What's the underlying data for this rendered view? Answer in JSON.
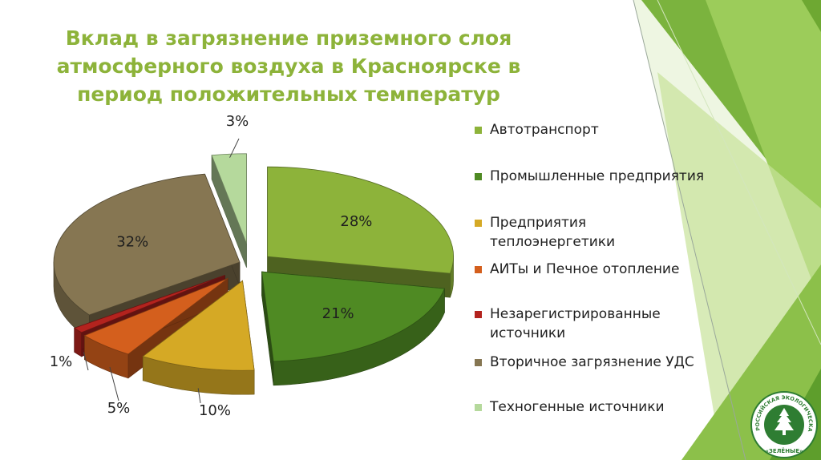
{
  "slide": {
    "title_lines": [
      "Вклад в загрязнение приземного слоя",
      "атмосферного воздуха в Красноярске в",
      "период положительных температур"
    ],
    "title_color": "#8db33a"
  },
  "chart_data": {
    "type": "pie",
    "style": "3d-exploded",
    "legend_position": "right",
    "categories": [
      "Автотранспорт",
      "Промышленные предприятия",
      "Предприятия теплоэнергетики",
      "АИТы и Печное отопление",
      "Незарегистрированные источники",
      "Вторичное загрязнение УДС",
      "Техногенные источники"
    ],
    "values": [
      28,
      21,
      10,
      5,
      1,
      32,
      3
    ],
    "value_labels": [
      "28%",
      "21%",
      "10%",
      "5%",
      "1%",
      "32%",
      "3%"
    ],
    "colors": [
      "#8db33a",
      "#4f8a23",
      "#d5a925",
      "#d45f1d",
      "#b3231e",
      "#867652",
      "#b5d99c"
    ]
  },
  "legend": {
    "items": [
      {
        "label": "Автотранспорт",
        "color": "#8db33a"
      },
      {
        "label": "Промышленные предприятия",
        "color": "#4f8a23"
      },
      {
        "label": "Предприятия теплоэнергетики",
        "color": "#d5a925"
      },
      {
        "label": "АИТы и Печное отопление",
        "color": "#d45f1d"
      },
      {
        "label": "Незарегистрированные источники",
        "color": "#b3231e"
      },
      {
        "label": "Вторичное загрязнение УДС",
        "color": "#867652"
      },
      {
        "label": "Техногенные источники",
        "color": "#b5d99c"
      }
    ]
  },
  "logo": {
    "ring_text": "РОССИЙСКАЯ ЭКОЛОГИЧЕСКАЯ ПАРТИЯ",
    "bottom_text": "«ЗЕЛЁНЫЕ»",
    "color": "#2e7d32"
  }
}
